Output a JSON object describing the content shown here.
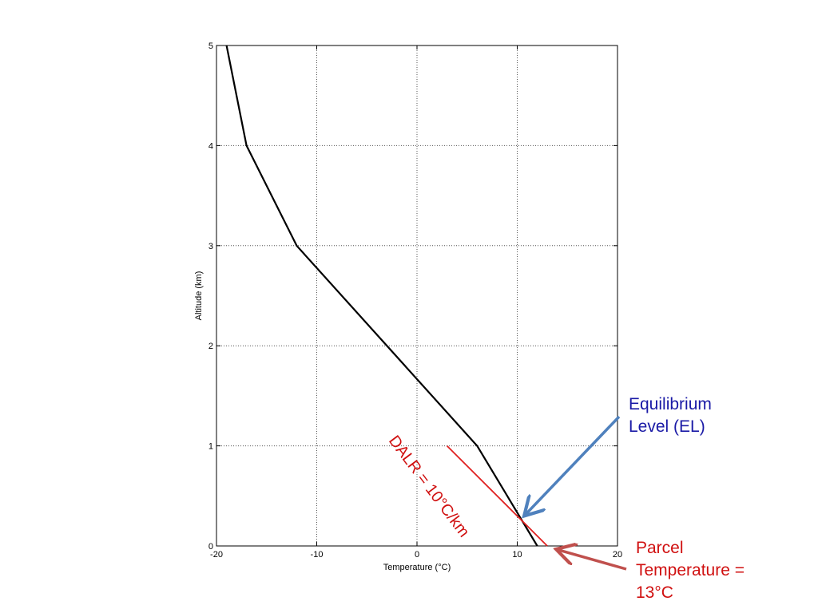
{
  "chart_data": {
    "type": "line",
    "xlabel": "Temperature (°C)",
    "ylabel": "Altitude (km)",
    "xlim": [
      -20,
      20
    ],
    "ylim": [
      0,
      5
    ],
    "xticks": [
      -20,
      -10,
      0,
      10,
      20
    ],
    "yticks": [
      0,
      1,
      2,
      3,
      4,
      5
    ],
    "xtick_labels": [
      "-20",
      "-10",
      "0",
      "10",
      "20"
    ],
    "ytick_labels": [
      "0",
      "1",
      "2",
      "3",
      "4",
      "5"
    ],
    "grid": true,
    "series": [
      {
        "role": "environmental temperature profile",
        "color": "#000000",
        "x": [
          12,
          6,
          -12,
          -17,
          -19
        ],
        "y": [
          0,
          1,
          3,
          4,
          5
        ]
      },
      {
        "role": "dry adiabatic lapse rate line",
        "color": "#e02020",
        "x": [
          13,
          3
        ],
        "y": [
          0,
          1
        ]
      }
    ],
    "annotations": [
      {
        "id": "el",
        "text_lines": [
          "Equilibrium",
          "Level (EL)"
        ],
        "color": "#1a1aa6",
        "arrow_color": "#4f81bd",
        "points_to": {
          "x": 10.4,
          "y": 0.28
        }
      },
      {
        "id": "parcel",
        "text_lines": [
          "Parcel",
          "Temperature =",
          "13°C"
        ],
        "color": "#d01010",
        "arrow_color": "#c0504d",
        "points_to": {
          "x": 13.5,
          "y": -0.04
        }
      },
      {
        "id": "dalr",
        "text": "DALR = 10°C/km",
        "color": "#d01010"
      }
    ]
  }
}
